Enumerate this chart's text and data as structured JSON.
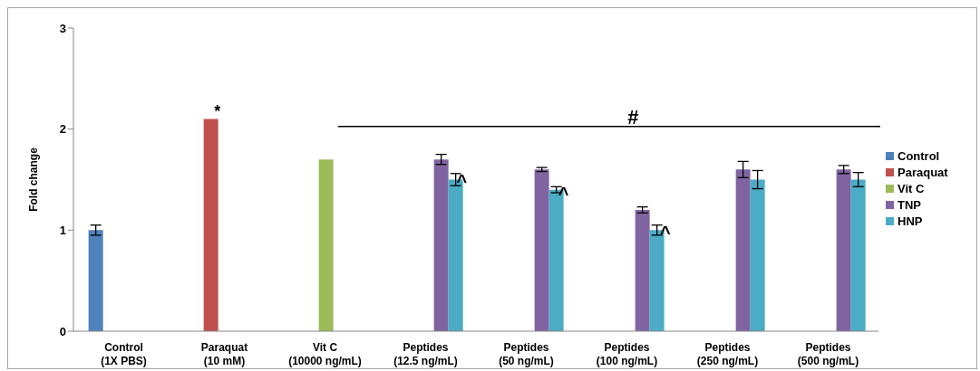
{
  "chart_data": {
    "type": "bar",
    "ylabel": "Fold change",
    "categories": [
      "Control\n(1X PBS)",
      "Paraquat\n(10 mM)",
      "Vit C\n(10000 ng/mL)",
      "Peptides\n(12.5 ng/mL)",
      "Peptides\n(50 ng/mL)",
      "Peptides\n(100 ng/mL)",
      "Peptides\n(250 ng/mL)",
      "Peptides\n(500 ng/mL)"
    ],
    "series": [
      {
        "name": "Control",
        "color": "#4f81bd",
        "values": [
          1.0,
          null,
          null,
          null,
          null,
          null,
          null,
          null
        ],
        "errors": [
          0.05,
          null,
          null,
          null,
          null,
          null,
          null,
          null
        ]
      },
      {
        "name": "Paraquat",
        "color": "#c0504d",
        "values": [
          null,
          2.1,
          null,
          null,
          null,
          null,
          null,
          null
        ],
        "errors": [
          null,
          0,
          null,
          null,
          null,
          null,
          null,
          null
        ]
      },
      {
        "name": "Vit C",
        "color": "#9bbb59",
        "values": [
          null,
          null,
          1.7,
          null,
          null,
          null,
          null,
          null
        ],
        "errors": [
          null,
          null,
          0,
          null,
          null,
          null,
          null,
          null
        ]
      },
      {
        "name": "TNP",
        "color": "#8064a2",
        "values": [
          null,
          null,
          null,
          1.7,
          1.6,
          1.2,
          1.6,
          1.6
        ],
        "errors": [
          null,
          null,
          null,
          0.05,
          0.02,
          0.03,
          0.08,
          0.04
        ]
      },
      {
        "name": "HNP",
        "color": "#4bacc6",
        "values": [
          null,
          null,
          null,
          1.5,
          1.4,
          1.0,
          1.5,
          1.5
        ],
        "errors": [
          null,
          null,
          null,
          0.06,
          0.03,
          0.05,
          0.09,
          0.07
        ]
      }
    ],
    "annotations": [
      "*",
      "#",
      "^",
      "^",
      "^"
    ],
    "ylim": [
      0,
      3
    ],
    "yticks": [
      0,
      1,
      2,
      3
    ],
    "grid": false,
    "legend": "right"
  }
}
